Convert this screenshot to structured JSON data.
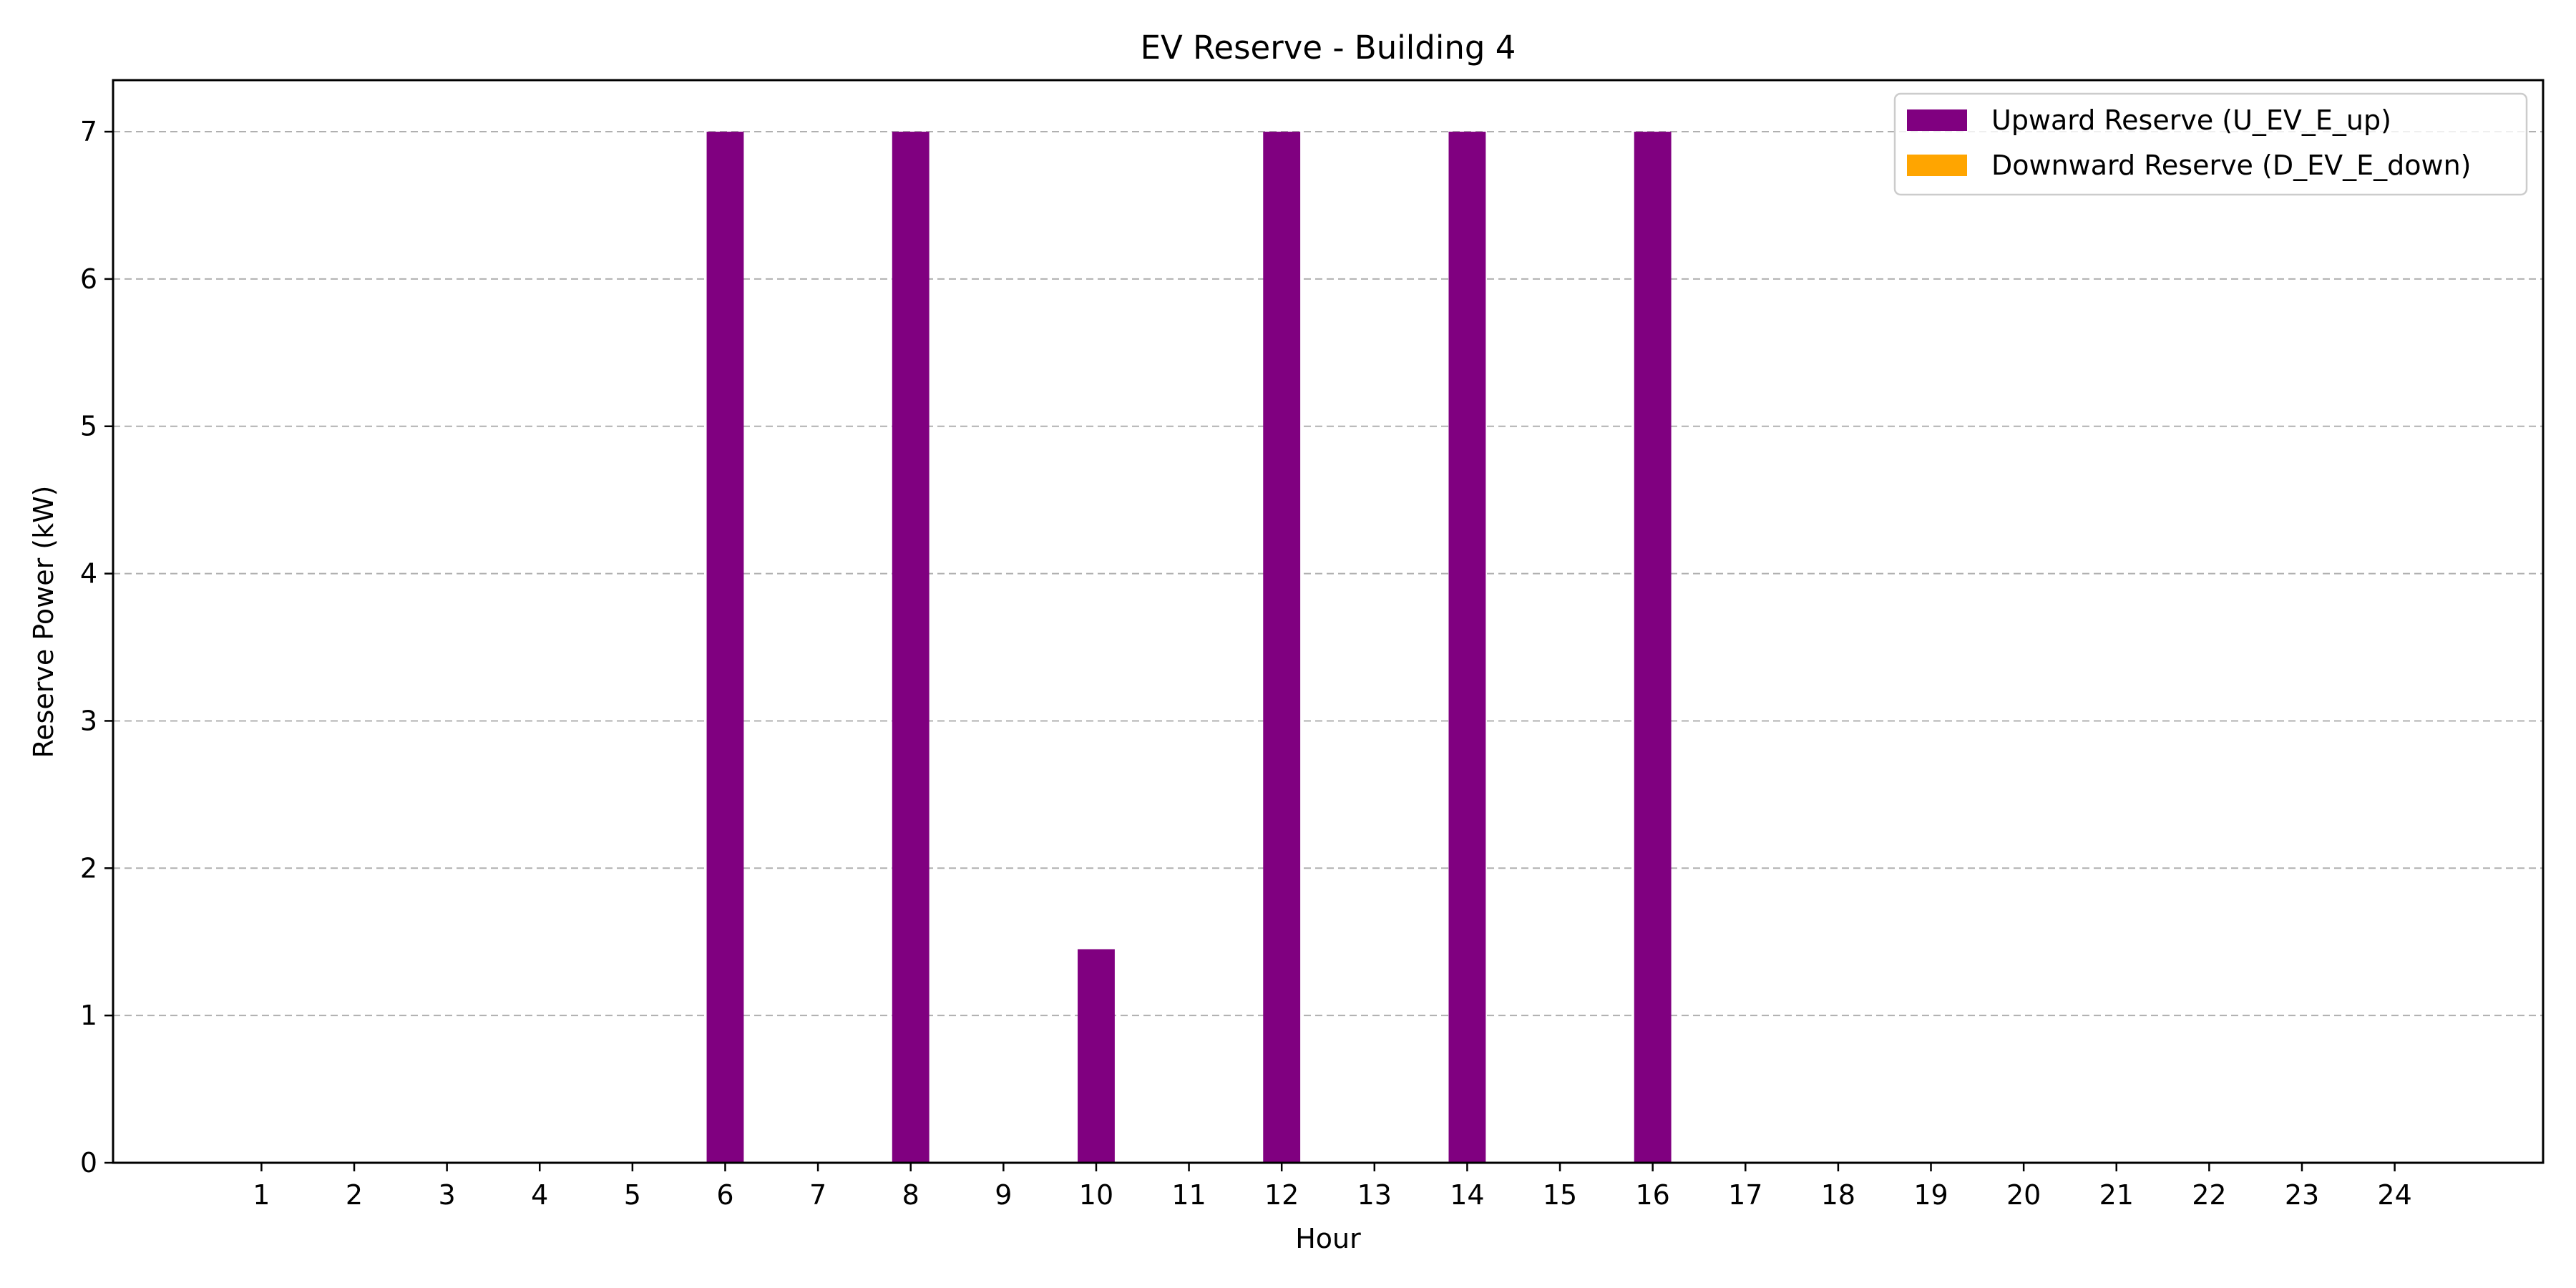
{
  "chart_data": {
    "type": "bar",
    "title": "EV Reserve - Building 4",
    "xlabel": "Hour",
    "ylabel": "Reserve Power (kW)",
    "categories": [
      "1",
      "2",
      "3",
      "4",
      "5",
      "6",
      "7",
      "8",
      "9",
      "10",
      "11",
      "12",
      "13",
      "14",
      "15",
      "16",
      "17",
      "18",
      "19",
      "20",
      "21",
      "22",
      "23",
      "24"
    ],
    "series": [
      {
        "name": "Upward Reserve (U_EV_E_up)",
        "color": "#800080",
        "values": [
          0,
          0,
          0,
          0,
          0,
          7,
          0,
          7,
          0,
          1.45,
          0,
          7,
          0,
          7,
          0,
          7,
          0,
          0,
          0,
          0,
          0,
          0,
          0,
          0
        ]
      },
      {
        "name": "Downward Reserve (D_EV_E_down)",
        "color": "#FFA500",
        "values": [
          0,
          0,
          0,
          0,
          0,
          0,
          0,
          0,
          0,
          0,
          0,
          0,
          0,
          0,
          0,
          0,
          0,
          0,
          0,
          0,
          0,
          0,
          0,
          0
        ]
      }
    ],
    "xlim": [
      -0.6,
      25.6
    ],
    "ylim": [
      0,
      7.35
    ],
    "yticks": [
      0,
      1,
      2,
      3,
      4,
      5,
      6,
      7
    ],
    "grid": "y-dashed",
    "legend_position": "top-right"
  }
}
